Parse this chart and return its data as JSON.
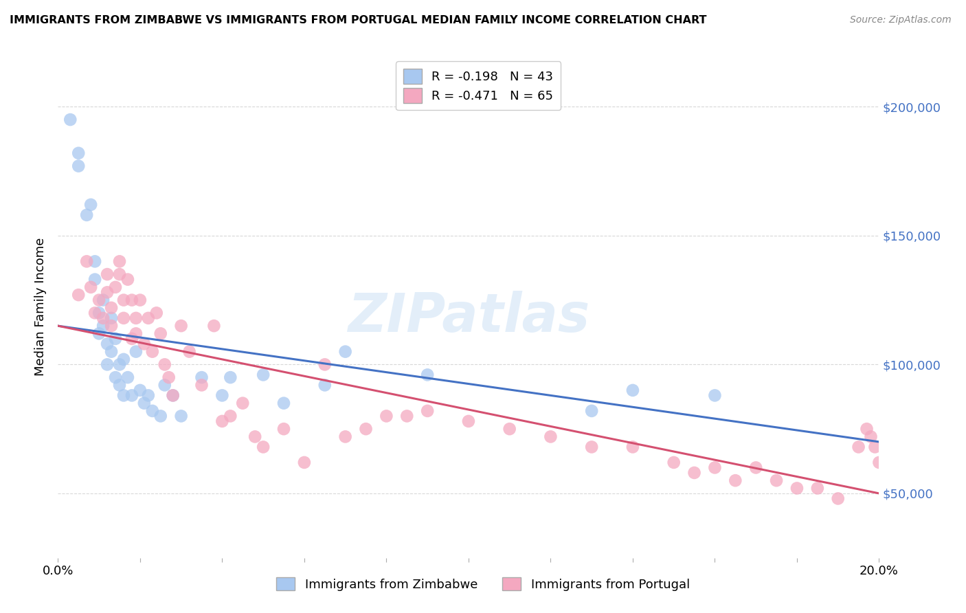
{
  "title": "IMMIGRANTS FROM ZIMBABWE VS IMMIGRANTS FROM PORTUGAL MEDIAN FAMILY INCOME CORRELATION CHART",
  "source": "Source: ZipAtlas.com",
  "ylabel": "Median Family Income",
  "xlim": [
    0.0,
    0.2
  ],
  "ylim": [
    25000,
    220000
  ],
  "yticks": [
    50000,
    100000,
    150000,
    200000
  ],
  "zimbabwe_color": "#a8c8f0",
  "portugal_color": "#f4a8c0",
  "zimbabwe_line_color": "#4472c4",
  "portugal_line_color": "#d45070",
  "background_color": "#ffffff",
  "grid_color": "#d8d8d8",
  "watermark": "ZIPatlas",
  "zimbabwe_x": [
    0.003,
    0.005,
    0.005,
    0.007,
    0.008,
    0.009,
    0.009,
    0.01,
    0.01,
    0.011,
    0.011,
    0.012,
    0.012,
    0.013,
    0.013,
    0.014,
    0.014,
    0.015,
    0.015,
    0.016,
    0.016,
    0.017,
    0.018,
    0.019,
    0.02,
    0.021,
    0.022,
    0.023,
    0.025,
    0.026,
    0.028,
    0.03,
    0.035,
    0.04,
    0.042,
    0.05,
    0.055,
    0.065,
    0.07,
    0.09,
    0.13,
    0.14,
    0.16
  ],
  "zimbabwe_y": [
    195000,
    182000,
    177000,
    158000,
    162000,
    140000,
    133000,
    120000,
    112000,
    125000,
    115000,
    108000,
    100000,
    118000,
    105000,
    95000,
    110000,
    100000,
    92000,
    102000,
    88000,
    95000,
    88000,
    105000,
    90000,
    85000,
    88000,
    82000,
    80000,
    92000,
    88000,
    80000,
    95000,
    88000,
    95000,
    96000,
    85000,
    92000,
    105000,
    96000,
    82000,
    90000,
    88000
  ],
  "portugal_x": [
    0.005,
    0.007,
    0.008,
    0.009,
    0.01,
    0.011,
    0.012,
    0.012,
    0.013,
    0.013,
    0.014,
    0.015,
    0.015,
    0.016,
    0.016,
    0.017,
    0.018,
    0.018,
    0.019,
    0.019,
    0.02,
    0.021,
    0.022,
    0.023,
    0.024,
    0.025,
    0.026,
    0.027,
    0.028,
    0.03,
    0.032,
    0.035,
    0.038,
    0.04,
    0.042,
    0.045,
    0.048,
    0.05,
    0.055,
    0.06,
    0.065,
    0.07,
    0.075,
    0.08,
    0.085,
    0.09,
    0.1,
    0.11,
    0.12,
    0.13,
    0.14,
    0.15,
    0.155,
    0.16,
    0.165,
    0.17,
    0.175,
    0.18,
    0.185,
    0.19,
    0.195,
    0.197,
    0.198,
    0.199,
    0.2
  ],
  "portugal_y": [
    127000,
    140000,
    130000,
    120000,
    125000,
    118000,
    135000,
    128000,
    122000,
    115000,
    130000,
    140000,
    135000,
    125000,
    118000,
    133000,
    125000,
    110000,
    118000,
    112000,
    125000,
    108000,
    118000,
    105000,
    120000,
    112000,
    100000,
    95000,
    88000,
    115000,
    105000,
    92000,
    115000,
    78000,
    80000,
    85000,
    72000,
    68000,
    75000,
    62000,
    100000,
    72000,
    75000,
    80000,
    80000,
    82000,
    78000,
    75000,
    72000,
    68000,
    68000,
    62000,
    58000,
    60000,
    55000,
    60000,
    55000,
    52000,
    52000,
    48000,
    68000,
    75000,
    72000,
    68000,
    62000
  ]
}
